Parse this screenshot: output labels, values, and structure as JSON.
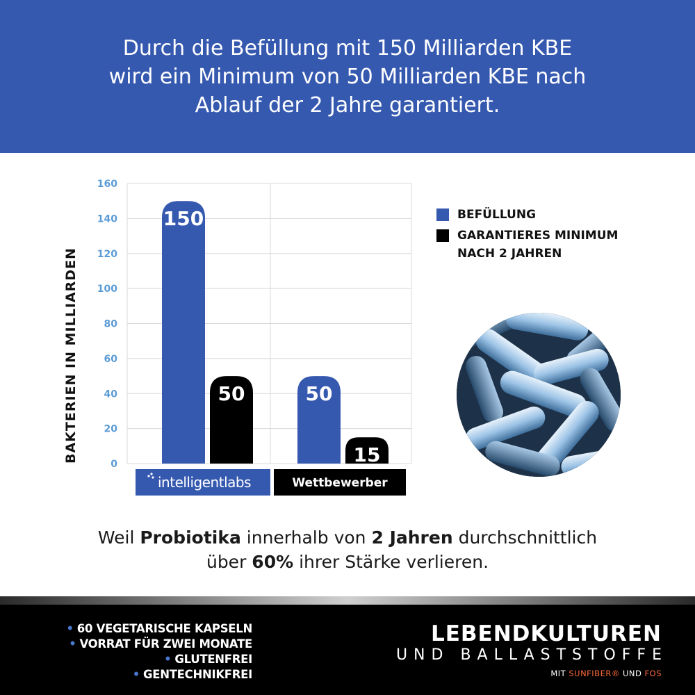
{
  "header": {
    "line1": "Durch die Befüllung mit 150 Milliarden KBE",
    "line2": "wird ein Minimum von 50 Milliarden KBE nach",
    "line3": "Ablauf der 2 Jahre garantiert."
  },
  "chart_data": {
    "type": "bar",
    "ylabel": "BAKTERIEN IN MILLIARDEN",
    "ylim": [
      0,
      160
    ],
    "yticks": [
      "0",
      "20",
      "40",
      "60",
      "80",
      "100",
      "120",
      "140",
      "160"
    ],
    "categories": [
      "intelligentlabs",
      "Wettbewerber"
    ],
    "series": [
      {
        "name": "BEFÜLLUNG",
        "values": [
          150,
          50
        ],
        "color": "#3659b0"
      },
      {
        "name": "GARANTIERES MINIMUM NACH 2 JAHREN",
        "values": [
          50,
          15
        ],
        "color": "#000000"
      }
    ],
    "category_label_colors": [
      "#3659b0",
      "#000000"
    ],
    "grid": true,
    "legend": "right"
  },
  "legend": {
    "item1": "BEFÜLLUNG",
    "item2_line1": "GARANTIERES MINIMUM",
    "item2_line2": "NACH 2 JAHREN"
  },
  "caption": {
    "t1": "Weil ",
    "b1": "Probiotika",
    "t2": " innerhalb von ",
    "b2": "2 Jahren",
    "t3": " durchschnittlich",
    "t4": "über ",
    "b3": "60%",
    "t5": " ihrer Stärke verlieren."
  },
  "features": [
    "60 VEGETARISCHE KAPSELN",
    "VORRAT FÜR ZWEI MONATE",
    "GLUTENFREI",
    "GENTECHNIKFREI"
  ],
  "brand": {
    "line1": "LEBENDKULTUREN",
    "line2": "UND BALLASTSTOFFE",
    "line3_prefix": "MIT ",
    "line3_accent1": "SUNFIBER®",
    "line3_mid": " UND ",
    "line3_accent2": "FOS"
  },
  "colors": {
    "primary_blue": "#3659b0",
    "tick_blue": "#5b9bd5",
    "accent_orange": "#ff6a3c"
  }
}
